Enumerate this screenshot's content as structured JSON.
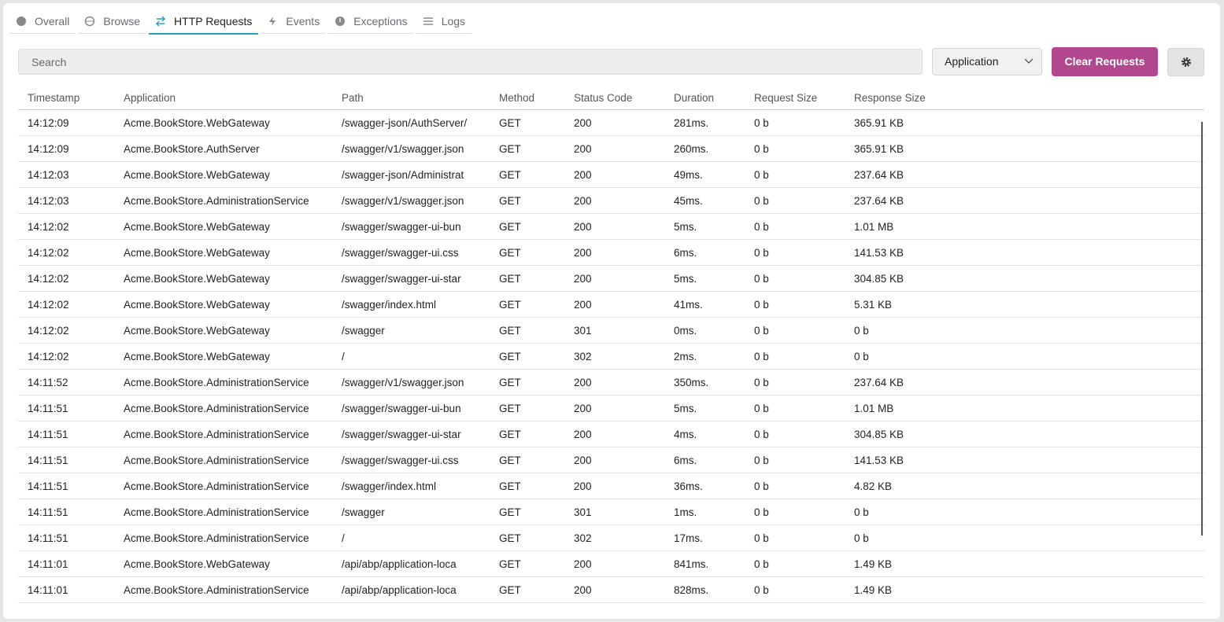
{
  "tabs": [
    "Overall",
    "Browse",
    "HTTP Requests",
    "Events",
    "Exceptions",
    "Logs"
  ],
  "active_tab": 2,
  "toolbar": {
    "search_placeholder": "Search",
    "select_label": "Application",
    "clear_button": "Clear Requests"
  },
  "table": {
    "headers": [
      "Timestamp",
      "Application",
      "Path",
      "Method",
      "Status Code",
      "Duration",
      "Request Size",
      "Response Size"
    ],
    "rows": [
      [
        "14:12:09",
        "Acme.BookStore.WebGateway",
        "/swagger-json/AuthServer/",
        "GET",
        "200",
        "281ms.",
        "0 b",
        "365.91 KB"
      ],
      [
        "14:12:09",
        "Acme.BookStore.AuthServer",
        "/swagger/v1/swagger.json",
        "GET",
        "200",
        "260ms.",
        "0 b",
        "365.91 KB"
      ],
      [
        "14:12:03",
        "Acme.BookStore.WebGateway",
        "/swagger-json/Administrat",
        "GET",
        "200",
        "49ms.",
        "0 b",
        "237.64 KB"
      ],
      [
        "14:12:03",
        "Acme.BookStore.AdministrationService",
        "/swagger/v1/swagger.json",
        "GET",
        "200",
        "45ms.",
        "0 b",
        "237.64 KB"
      ],
      [
        "14:12:02",
        "Acme.BookStore.WebGateway",
        "/swagger/swagger-ui-bun",
        "GET",
        "200",
        "5ms.",
        "0 b",
        "1.01 MB"
      ],
      [
        "14:12:02",
        "Acme.BookStore.WebGateway",
        "/swagger/swagger-ui.css",
        "GET",
        "200",
        "6ms.",
        "0 b",
        "141.53 KB"
      ],
      [
        "14:12:02",
        "Acme.BookStore.WebGateway",
        "/swagger/swagger-ui-star",
        "GET",
        "200",
        "5ms.",
        "0 b",
        "304.85 KB"
      ],
      [
        "14:12:02",
        "Acme.BookStore.WebGateway",
        "/swagger/index.html",
        "GET",
        "200",
        "41ms.",
        "0 b",
        "5.31 KB"
      ],
      [
        "14:12:02",
        "Acme.BookStore.WebGateway",
        "/swagger",
        "GET",
        "301",
        "0ms.",
        "0 b",
        "0 b"
      ],
      [
        "14:12:02",
        "Acme.BookStore.WebGateway",
        "/",
        "GET",
        "302",
        "2ms.",
        "0 b",
        "0 b"
      ],
      [
        "14:11:52",
        "Acme.BookStore.AdministrationService",
        "/swagger/v1/swagger.json",
        "GET",
        "200",
        "350ms.",
        "0 b",
        "237.64 KB"
      ],
      [
        "14:11:51",
        "Acme.BookStore.AdministrationService",
        "/swagger/swagger-ui-bun",
        "GET",
        "200",
        "5ms.",
        "0 b",
        "1.01 MB"
      ],
      [
        "14:11:51",
        "Acme.BookStore.AdministrationService",
        "/swagger/swagger-ui-star",
        "GET",
        "200",
        "4ms.",
        "0 b",
        "304.85 KB"
      ],
      [
        "14:11:51",
        "Acme.BookStore.AdministrationService",
        "/swagger/swagger-ui.css",
        "GET",
        "200",
        "6ms.",
        "0 b",
        "141.53 KB"
      ],
      [
        "14:11:51",
        "Acme.BookStore.AdministrationService",
        "/swagger/index.html",
        "GET",
        "200",
        "36ms.",
        "0 b",
        "4.82 KB"
      ],
      [
        "14:11:51",
        "Acme.BookStore.AdministrationService",
        "/swagger",
        "GET",
        "301",
        "1ms.",
        "0 b",
        "0 b"
      ],
      [
        "14:11:51",
        "Acme.BookStore.AdministrationService",
        "/",
        "GET",
        "302",
        "17ms.",
        "0 b",
        "0 b"
      ],
      [
        "14:11:01",
        "Acme.BookStore.WebGateway",
        "/api/abp/application-loca",
        "GET",
        "200",
        "841ms.",
        "0 b",
        "1.49 KB"
      ],
      [
        "14:11:01",
        "Acme.BookStore.AdministrationService",
        "/api/abp/application-loca",
        "GET",
        "200",
        "828ms.",
        "0 b",
        "1.49 KB"
      ]
    ]
  }
}
